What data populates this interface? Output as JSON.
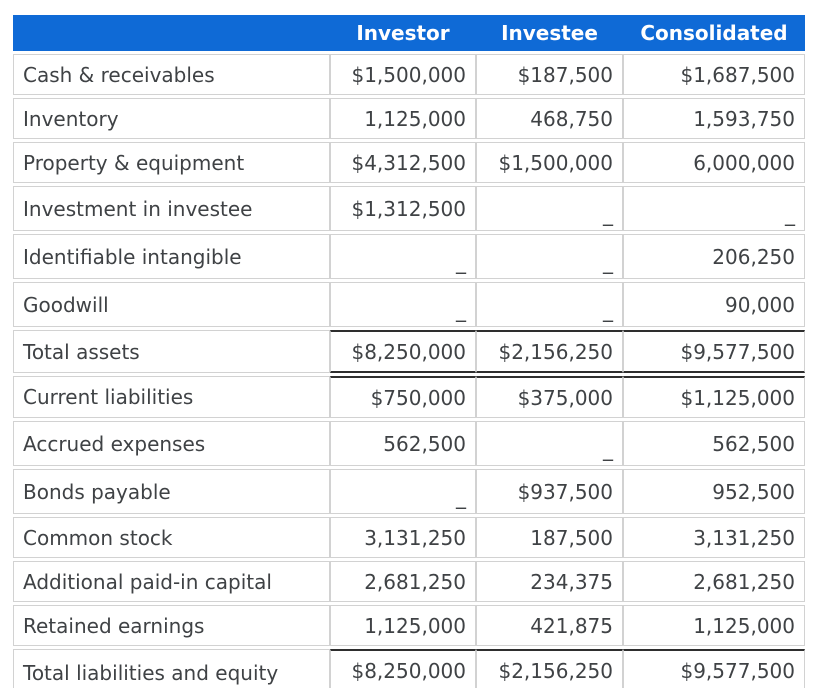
{
  "colors": {
    "header_bg": "#0f6ad6",
    "header_text": "#ffffff",
    "body_text": "#3f4245",
    "grid_border": "#d2d2d2",
    "total_rule": "#2e2e2e"
  },
  "empty_marker": "_",
  "chart_data": {
    "type": "table",
    "columns": [
      "",
      "Investor",
      "Investee",
      "Consolidated"
    ],
    "rows": [
      {
        "label": "Cash & receivables",
        "investor": "$1,500,000",
        "investee": "$187,500",
        "consolidated": "$1,687,500",
        "style": "normal"
      },
      {
        "label": "Inventory",
        "investor": "1,125,000",
        "investee": "468,750",
        "consolidated": "1,593,750",
        "style": "normal"
      },
      {
        "label": "Property & equipment",
        "investor": "$4,312,500",
        "investee": "$1,500,000",
        "consolidated": "6,000,000",
        "style": "normal"
      },
      {
        "label": "Investment in investee",
        "investor": "$1,312,500",
        "investee": "_",
        "consolidated": "_",
        "style": "normal"
      },
      {
        "label": "Identifiable intangible",
        "investor": "_",
        "investee": "_",
        "consolidated": "206,250",
        "style": "normal"
      },
      {
        "label": "Goodwill",
        "investor": "_",
        "investee": "_",
        "consolidated": "90,000",
        "style": "normal"
      },
      {
        "label": "Total assets",
        "investor": "$8,250,000",
        "investee": "$2,156,250",
        "consolidated": "$9,577,500",
        "style": "total"
      },
      {
        "label": "Current liabilities",
        "investor": "$750,000",
        "investee": "$375,000",
        "consolidated": "$1,125,000",
        "style": "section-start"
      },
      {
        "label": "Accrued expenses",
        "investor": "562,500",
        "investee": "_",
        "consolidated": "562,500",
        "style": "normal"
      },
      {
        "label": "Bonds payable",
        "investor": "_",
        "investee": "$937,500",
        "consolidated": "952,500",
        "style": "normal"
      },
      {
        "label": "Common stock",
        "investor": "3,131,250",
        "investee": "187,500",
        "consolidated": "3,131,250",
        "style": "normal"
      },
      {
        "label": "Additional paid-in capital",
        "investor": "2,681,250",
        "investee": "234,375",
        "consolidated": "2,681,250",
        "style": "normal"
      },
      {
        "label": "Retained earnings",
        "investor": "1,125,000",
        "investee": "421,875",
        "consolidated": "1,125,000",
        "style": "normal"
      },
      {
        "label": "Total liabilities and equity",
        "investor": "$8,250,000",
        "investee": "$2,156,250",
        "consolidated": "$9,577,500",
        "style": "grand-total"
      }
    ]
  }
}
